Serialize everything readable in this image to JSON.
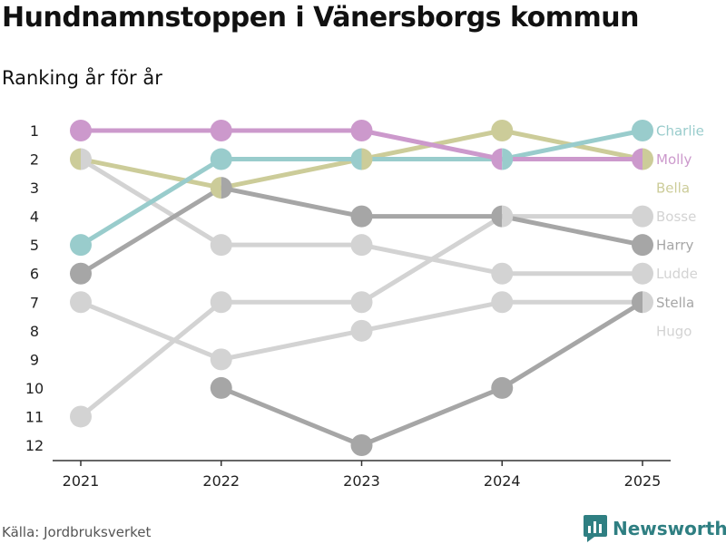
{
  "title": "Hundnamnstoppen i Vänersborgs kommun",
  "subtitle": "Ranking år för år",
  "source": "Källa: Jordbruksverket",
  "brand": "Newsworthy",
  "colors": {
    "axis": "#333333",
    "brand": "#2f7f82"
  },
  "chart_data": {
    "type": "line",
    "title": "Hundnamnstoppen i Vänersborgs kommun",
    "subtitle": "Ranking år för år",
    "x": [
      "2021",
      "2022",
      "2023",
      "2024",
      "2025"
    ],
    "y_ticks": [
      1,
      2,
      3,
      4,
      5,
      6,
      7,
      8,
      9,
      10,
      11,
      12
    ],
    "ylim": [
      1,
      12
    ],
    "y_inverted": true,
    "series": [
      {
        "name": "Bosse",
        "color": "#d3d3d3",
        "values": [
          11,
          7,
          7,
          4,
          4
        ]
      },
      {
        "name": "Hugo",
        "color": "#d3d3d3",
        "values": [
          7,
          9,
          8,
          7,
          7
        ]
      },
      {
        "name": "Ludde",
        "color": "#d3d3d3",
        "values": [
          2,
          5,
          5,
          6,
          6
        ]
      },
      {
        "name": "Stella",
        "color": "#a6a6a6",
        "values": [
          null,
          10,
          12,
          10,
          7
        ]
      },
      {
        "name": "Harry",
        "color": "#a6a6a6",
        "values": [
          6,
          3,
          4,
          4,
          5
        ]
      },
      {
        "name": "Bella",
        "color": "#cccc99",
        "values": [
          2,
          3,
          2,
          1,
          2
        ]
      },
      {
        "name": "Charlie",
        "color": "#99cccc",
        "values": [
          5,
          2,
          2,
          2,
          1
        ]
      },
      {
        "name": "Molly",
        "color": "#cc99cc",
        "values": [
          1,
          1,
          1,
          2,
          2
        ]
      }
    ],
    "end_labels": [
      {
        "name": "Charlie",
        "color": "#99cccc",
        "rank": 1
      },
      {
        "name": "Molly",
        "color": "#cc99cc",
        "rank": 2
      },
      {
        "name": "Bella",
        "color": "#cccc99",
        "rank": 3
      },
      {
        "name": "Bosse",
        "color": "#d3d3d3",
        "rank": 4
      },
      {
        "name": "Harry",
        "color": "#a6a6a6",
        "rank": 5
      },
      {
        "name": "Ludde",
        "color": "#d3d3d3",
        "rank": 6
      },
      {
        "name": "Stella",
        "color": "#a6a6a6",
        "rank": 7
      },
      {
        "name": "Hugo",
        "color": "#d3d3d3",
        "rank": 8
      }
    ]
  }
}
